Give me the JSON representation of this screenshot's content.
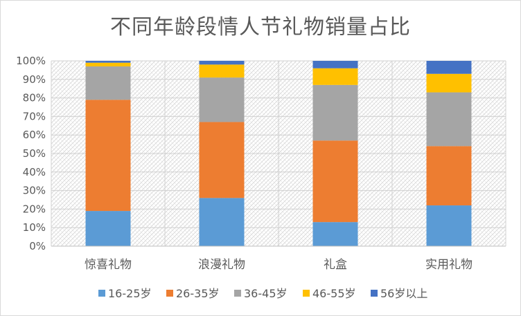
{
  "chart_data": {
    "type": "bar",
    "stacked": true,
    "percent": true,
    "title": "不同年龄段情人节礼物销量占比",
    "categories": [
      "惊喜礼物",
      "浪漫礼物",
      "礼盒",
      "实用礼物"
    ],
    "series": [
      {
        "name": "16-25岁",
        "color": "#5b9bd5",
        "values": [
          19,
          26,
          13,
          22
        ]
      },
      {
        "name": "26-35岁",
        "color": "#ed7d31",
        "values": [
          60,
          41,
          44,
          32
        ]
      },
      {
        "name": "36-45岁",
        "color": "#a5a5a5",
        "values": [
          18,
          24,
          30,
          29
        ]
      },
      {
        "name": "46-55岁",
        "color": "#ffc000",
        "values": [
          2,
          7,
          9,
          10
        ]
      },
      {
        "name": "56岁以上",
        "color": "#4472c4",
        "values": [
          1,
          2,
          4,
          7
        ]
      }
    ],
    "ylim": [
      0,
      100
    ],
    "yticks": [
      "0%",
      "10%",
      "20%",
      "30%",
      "40%",
      "50%",
      "60%",
      "70%",
      "80%",
      "90%",
      "100%"
    ],
    "grid": true,
    "legend": "bottom"
  }
}
